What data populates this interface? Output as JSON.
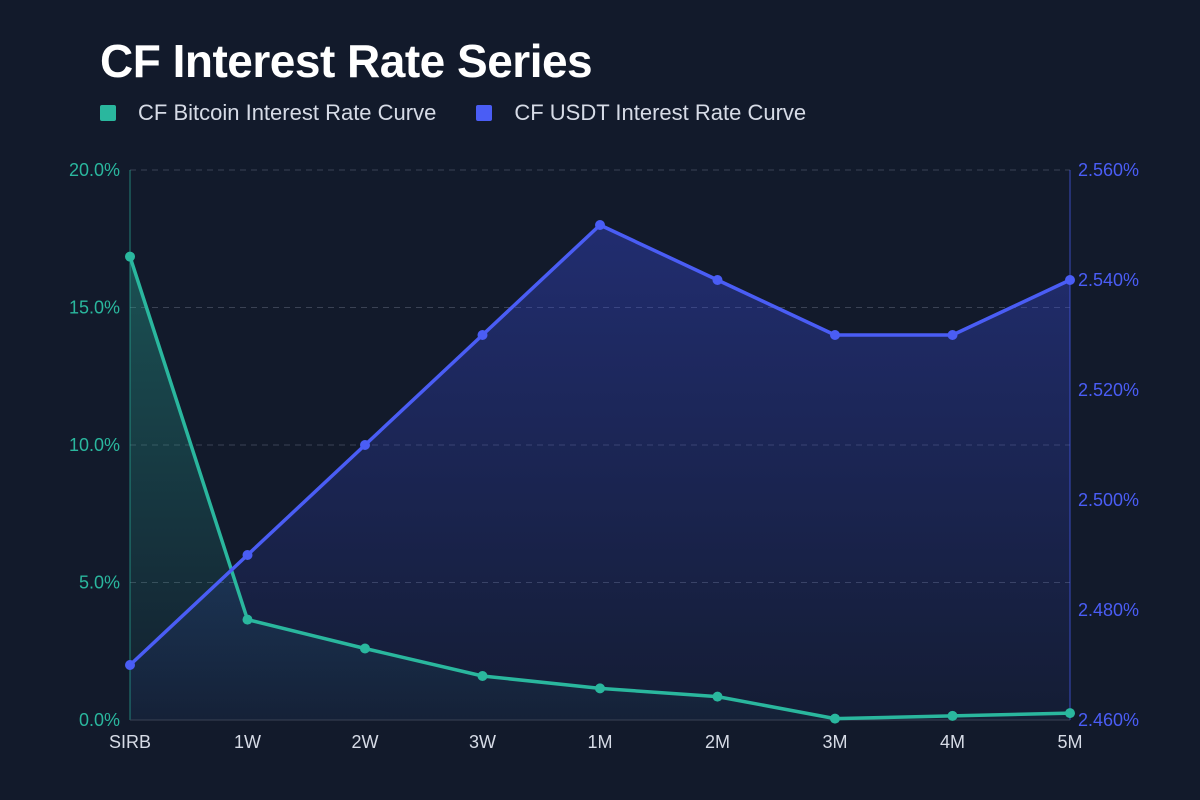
{
  "chart_data": {
    "type": "line",
    "title": "CF Interest Rate Series",
    "categories": [
      "SIRB",
      "1W",
      "2W",
      "3W",
      "1M",
      "2M",
      "3M",
      "4M",
      "5M"
    ],
    "series": [
      {
        "name": "CF Bitcoin Interest Rate Curve",
        "axis": "left",
        "color": "#2ab79e",
        "values": [
          16.85,
          3.65,
          2.6,
          1.6,
          1.15,
          0.85,
          0.05,
          0.15,
          0.25
        ]
      },
      {
        "name": "CF USDT Interest Rate Curve",
        "axis": "right",
        "color": "#4a5df5",
        "values": [
          2.47,
          2.49,
          2.51,
          2.53,
          2.55,
          2.54,
          2.53,
          2.53,
          2.54
        ]
      }
    ],
    "y_left": {
      "ylim": [
        0,
        20
      ],
      "ticks": [
        0,
        5,
        10,
        15,
        20
      ],
      "tick_labels": [
        "0.0%",
        "5.0%",
        "10.0%",
        "15.0%",
        "20.0%"
      ]
    },
    "y_right": {
      "ylim": [
        2.46,
        2.56
      ],
      "ticks": [
        2.46,
        2.48,
        2.5,
        2.52,
        2.54,
        2.56
      ],
      "tick_labels": [
        "2.460%",
        "2.480%",
        "2.500%",
        "2.520%",
        "2.540%",
        "2.560%"
      ]
    },
    "xlabel": "",
    "ylabel": "",
    "grid": true,
    "legend": "top-left"
  }
}
